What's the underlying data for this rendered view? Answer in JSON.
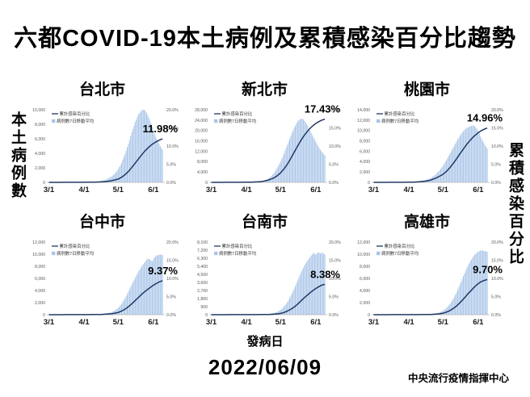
{
  "page": {
    "title": "六都COVID-19本土病例及累積感染百分比趨勢",
    "left_axis_label": "本土病例數",
    "right_axis_label": "累積感染百分比",
    "x_axis_label": "發病日",
    "date": "2022/06/09",
    "source": "中央流行疫情指揮中心"
  },
  "legend": {
    "line_label": "累計感染百分比",
    "bar_label": "病例數7日移動平均"
  },
  "colors": {
    "bar": "#a9c5e8",
    "line": "#1f3864",
    "axis_text": "#595959",
    "tick_text": "#1a1a1a",
    "axis_line": "#b3b3b3",
    "annotation": "#000000"
  },
  "chart_common": {
    "x_ticks": [
      {
        "day": 0,
        "label": "3/1"
      },
      {
        "day": 31,
        "label": "4/1"
      },
      {
        "day": 61,
        "label": "5/1"
      },
      {
        "day": 92,
        "label": "6/1"
      }
    ],
    "days_total": 100,
    "right_axis": {
      "max": 20,
      "step": 5,
      "format": "percent"
    },
    "grid": false,
    "legend_position": "top-left"
  },
  "chart_data": [
    {
      "type": "bar+line",
      "title": "台北市",
      "annotation": "11.98%",
      "left_axis": {
        "max": 10000,
        "step": 2000
      },
      "series": [
        {
          "name": "病例數7日移動平均",
          "kind": "bar",
          "axis": "left",
          "points": [
            [
              0,
              0
            ],
            [
              20,
              10
            ],
            [
              31,
              30
            ],
            [
              40,
              80
            ],
            [
              45,
              150
            ],
            [
              50,
              350
            ],
            [
              55,
              800
            ],
            [
              58,
              1200
            ],
            [
              61,
              1800
            ],
            [
              64,
              2700
            ],
            [
              67,
              3900
            ],
            [
              70,
              5300
            ],
            [
              73,
              6900
            ],
            [
              76,
              8300
            ],
            [
              79,
              9400
            ],
            [
              82,
              9950
            ],
            [
              84,
              10000
            ],
            [
              86,
              9600
            ],
            [
              88,
              8900
            ],
            [
              90,
              8100
            ],
            [
              92,
              7100
            ],
            [
              94,
              6300
            ],
            [
              96,
              5600
            ],
            [
              98,
              5000
            ],
            [
              100,
              4500
            ]
          ]
        },
        {
          "name": "累計感染百分比",
          "kind": "line",
          "axis": "right",
          "points": [
            [
              0,
              0
            ],
            [
              40,
              0.05
            ],
            [
              50,
              0.2
            ],
            [
              55,
              0.45
            ],
            [
              61,
              0.9
            ],
            [
              64,
              1.4
            ],
            [
              67,
              2.1
            ],
            [
              70,
              3.0
            ],
            [
              73,
              4.1
            ],
            [
              76,
              5.3
            ],
            [
              79,
              6.5
            ],
            [
              82,
              7.7
            ],
            [
              85,
              8.8
            ],
            [
              88,
              9.7
            ],
            [
              91,
              10.5
            ],
            [
              94,
              11.1
            ],
            [
              97,
              11.6
            ],
            [
              100,
              11.98
            ]
          ]
        }
      ]
    },
    {
      "type": "bar+line",
      "title": "新北市",
      "annotation": "17.43%",
      "left_axis": {
        "max": 28000,
        "step": 4000
      },
      "series": [
        {
          "name": "病例數7日移動平均",
          "kind": "bar",
          "axis": "left",
          "points": [
            [
              0,
              0
            ],
            [
              20,
              20
            ],
            [
              31,
              60
            ],
            [
              40,
              200
            ],
            [
              44,
              400
            ],
            [
              48,
              900
            ],
            [
              52,
              2000
            ],
            [
              55,
              3500
            ],
            [
              58,
              5500
            ],
            [
              61,
              8000
            ],
            [
              64,
              11000
            ],
            [
              67,
              14500
            ],
            [
              70,
              18000
            ],
            [
              73,
              21000
            ],
            [
              76,
              23500
            ],
            [
              79,
              24600
            ],
            [
              81,
              24300
            ],
            [
              83,
              23200
            ],
            [
              85,
              21800
            ],
            [
              87,
              20000
            ],
            [
              89,
              18200
            ],
            [
              91,
              16500
            ],
            [
              93,
              14800
            ],
            [
              95,
              13200
            ],
            [
              97,
              12000
            ],
            [
              99,
              10900
            ],
            [
              100,
              10400
            ]
          ]
        },
        {
          "name": "累計感染百分比",
          "kind": "line",
          "axis": "right",
          "points": [
            [
              0,
              0
            ],
            [
              35,
              0.05
            ],
            [
              44,
              0.2
            ],
            [
              50,
              0.6
            ],
            [
              55,
              1.2
            ],
            [
              58,
              1.8
            ],
            [
              61,
              2.6
            ],
            [
              64,
              3.7
            ],
            [
              67,
              5.0
            ],
            [
              70,
              6.6
            ],
            [
              73,
              8.3
            ],
            [
              76,
              10.0
            ],
            [
              79,
              11.6
            ],
            [
              82,
              13.0
            ],
            [
              85,
              14.2
            ],
            [
              88,
              15.2
            ],
            [
              91,
              16.0
            ],
            [
              94,
              16.6
            ],
            [
              97,
              17.1
            ],
            [
              100,
              17.43
            ]
          ]
        }
      ]
    },
    {
      "type": "bar+line",
      "title": "桃園市",
      "annotation": "14.96%",
      "left_axis": {
        "max": 14000,
        "step": 2000
      },
      "series": [
        {
          "name": "病例數7日移動平均",
          "kind": "bar",
          "axis": "left",
          "points": [
            [
              0,
              0
            ],
            [
              20,
              20
            ],
            [
              31,
              60
            ],
            [
              40,
              200
            ],
            [
              45,
              400
            ],
            [
              50,
              800
            ],
            [
              54,
              1400
            ],
            [
              58,
              2300
            ],
            [
              61,
              3200
            ],
            [
              64,
              4300
            ],
            [
              67,
              5500
            ],
            [
              70,
              6700
            ],
            [
              73,
              7900
            ],
            [
              76,
              9000
            ],
            [
              79,
              9900
            ],
            [
              82,
              10500
            ],
            [
              85,
              10800
            ],
            [
              88,
              11000
            ],
            [
              90,
              10600
            ],
            [
              92,
              9900
            ],
            [
              94,
              8900
            ],
            [
              96,
              8000
            ],
            [
              98,
              7200
            ],
            [
              100,
              6500
            ]
          ]
        },
        {
          "name": "累計感染百分比",
          "kind": "line",
          "axis": "right",
          "points": [
            [
              0,
              0
            ],
            [
              35,
              0.05
            ],
            [
              45,
              0.3
            ],
            [
              50,
              0.6
            ],
            [
              55,
              1.2
            ],
            [
              61,
              2.2
            ],
            [
              64,
              3.0
            ],
            [
              67,
              4.0
            ],
            [
              70,
              5.2
            ],
            [
              73,
              6.5
            ],
            [
              76,
              7.9
            ],
            [
              79,
              9.2
            ],
            [
              82,
              10.5
            ],
            [
              85,
              11.6
            ],
            [
              88,
              12.6
            ],
            [
              91,
              13.4
            ],
            [
              94,
              14.1
            ],
            [
              97,
              14.6
            ],
            [
              100,
              14.96
            ]
          ]
        }
      ]
    },
    {
      "type": "bar+line",
      "title": "台中市",
      "annotation": "9.37%",
      "left_axis": {
        "max": 12000,
        "step": 2000
      },
      "series": [
        {
          "name": "病例數7日移動平均",
          "kind": "bar",
          "axis": "left",
          "points": [
            [
              0,
              0
            ],
            [
              31,
              20
            ],
            [
              45,
              80
            ],
            [
              50,
              180
            ],
            [
              55,
              400
            ],
            [
              58,
              700
            ],
            [
              61,
              1100
            ],
            [
              64,
              1800
            ],
            [
              67,
              2700
            ],
            [
              70,
              3800
            ],
            [
              73,
              5000
            ],
            [
              76,
              6100
            ],
            [
              79,
              7200
            ],
            [
              82,
              8100
            ],
            [
              85,
              8800
            ],
            [
              87,
              9300
            ],
            [
              89,
              9100
            ],
            [
              91,
              8800
            ],
            [
              93,
              9500
            ],
            [
              95,
              9800
            ],
            [
              97,
              9900
            ],
            [
              100,
              9900
            ]
          ]
        },
        {
          "name": "累計感染百分比",
          "kind": "line",
          "axis": "right",
          "points": [
            [
              0,
              0
            ],
            [
              45,
              0.05
            ],
            [
              55,
              0.25
            ],
            [
              61,
              0.6
            ],
            [
              64,
              1.0
            ],
            [
              67,
              1.5
            ],
            [
              70,
              2.2
            ],
            [
              73,
              3.0
            ],
            [
              76,
              3.9
            ],
            [
              79,
              4.8
            ],
            [
              82,
              5.7
            ],
            [
              85,
              6.5
            ],
            [
              88,
              7.2
            ],
            [
              91,
              7.9
            ],
            [
              94,
              8.5
            ],
            [
              97,
              9.0
            ],
            [
              100,
              9.37
            ]
          ]
        }
      ]
    },
    {
      "type": "bar+line",
      "title": "台南市",
      "annotation": "8.38%",
      "left_axis": {
        "max": 8100,
        "step": 900
      },
      "series": [
        {
          "name": "病例數7日移動平均",
          "kind": "bar",
          "axis": "left",
          "points": [
            [
              0,
              0
            ],
            [
              31,
              15
            ],
            [
              50,
              80
            ],
            [
              55,
              180
            ],
            [
              58,
              320
            ],
            [
              61,
              550
            ],
            [
              64,
              900
            ],
            [
              67,
              1400
            ],
            [
              70,
              2100
            ],
            [
              73,
              2900
            ],
            [
              76,
              3800
            ],
            [
              79,
              4700
            ],
            [
              82,
              5500
            ],
            [
              85,
              6100
            ],
            [
              88,
              6600
            ],
            [
              90,
              6900
            ],
            [
              92,
              6700
            ],
            [
              94,
              6950
            ],
            [
              96,
              6850
            ],
            [
              98,
              6900
            ],
            [
              100,
              6700
            ]
          ]
        },
        {
          "name": "累計感染百分比",
          "kind": "line",
          "axis": "right",
          "points": [
            [
              0,
              0
            ],
            [
              50,
              0.05
            ],
            [
              58,
              0.2
            ],
            [
              61,
              0.35
            ],
            [
              64,
              0.6
            ],
            [
              67,
              1.0
            ],
            [
              70,
              1.5
            ],
            [
              73,
              2.1
            ],
            [
              76,
              2.9
            ],
            [
              79,
              3.8
            ],
            [
              82,
              4.7
            ],
            [
              85,
              5.5
            ],
            [
              88,
              6.3
            ],
            [
              91,
              7.0
            ],
            [
              94,
              7.6
            ],
            [
              97,
              8.1
            ],
            [
              100,
              8.38
            ]
          ]
        }
      ]
    },
    {
      "type": "bar+line",
      "title": "高雄市",
      "annotation": "9.70%",
      "left_axis": {
        "max": 12000,
        "step": 2000
      },
      "series": [
        {
          "name": "病例數7日移動平均",
          "kind": "bar",
          "axis": "left",
          "points": [
            [
              0,
              0
            ],
            [
              31,
              15
            ],
            [
              50,
              80
            ],
            [
              55,
              200
            ],
            [
              58,
              380
            ],
            [
              61,
              650
            ],
            [
              64,
              1100
            ],
            [
              67,
              1700
            ],
            [
              70,
              2600
            ],
            [
              73,
              3700
            ],
            [
              76,
              5000
            ],
            [
              79,
              6400
            ],
            [
              82,
              7700
            ],
            [
              85,
              8800
            ],
            [
              88,
              9700
            ],
            [
              91,
              10300
            ],
            [
              94,
              10600
            ],
            [
              96,
              10600
            ],
            [
              98,
              10500
            ],
            [
              100,
              10400
            ]
          ]
        },
        {
          "name": "累計感染百分比",
          "kind": "line",
          "axis": "right",
          "points": [
            [
              0,
              0
            ],
            [
              50,
              0.05
            ],
            [
              58,
              0.25
            ],
            [
              61,
              0.4
            ],
            [
              64,
              0.7
            ],
            [
              67,
              1.1
            ],
            [
              70,
              1.7
            ],
            [
              73,
              2.4
            ],
            [
              76,
              3.3
            ],
            [
              79,
              4.3
            ],
            [
              82,
              5.4
            ],
            [
              85,
              6.4
            ],
            [
              88,
              7.4
            ],
            [
              91,
              8.3
            ],
            [
              94,
              9.0
            ],
            [
              97,
              9.4
            ],
            [
              100,
              9.7
            ]
          ]
        }
      ]
    }
  ]
}
